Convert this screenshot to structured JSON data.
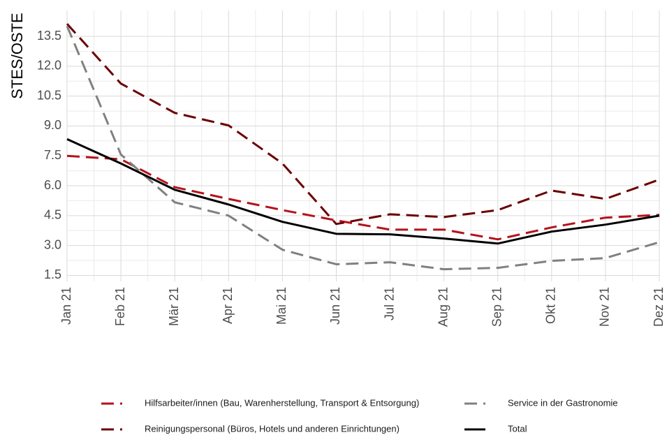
{
  "chart_data": {
    "type": "line",
    "y_label": "STES/OSTE",
    "categories": [
      "Jan 21",
      "Feb 21",
      "Mär 21",
      "Apr 21",
      "Mai 21",
      "Jun 21",
      "Jul 21",
      "Aug 21",
      "Sep 21",
      "Okt 21",
      "Nov 21",
      "Dez 21"
    ],
    "series": [
      {
        "name": "Hilfsarbeiter/innen (Bau, Warenherstellung, Transport & Entsorgung)",
        "color": "#b5121b",
        "linestyle": "dashed",
        "values": [
          7.5,
          7.33,
          5.93,
          5.34,
          4.78,
          4.26,
          3.8,
          3.8,
          3.31,
          3.91,
          4.4,
          4.54
        ]
      },
      {
        "name": "Reinigungspersonal (Büros, Hotels und anderen Einrichtungen)",
        "color": "#6b0000",
        "linestyle": "dashed",
        "values": [
          14.13,
          11.13,
          9.66,
          9.03,
          7.12,
          4.08,
          4.57,
          4.43,
          4.78,
          5.76,
          5.34,
          6.31
        ]
      },
      {
        "name": "Service in der Gastronomie",
        "color": "#808080",
        "linestyle": "dashed",
        "values": [
          14.02,
          7.57,
          5.17,
          4.5,
          2.79,
          2.06,
          2.16,
          1.81,
          1.88,
          2.23,
          2.37,
          3.17
        ]
      },
      {
        "name": "Total",
        "color": "#000000",
        "linestyle": "solid",
        "values": [
          8.34,
          7.12,
          5.8,
          5.06,
          4.19,
          3.59,
          3.56,
          3.35,
          3.1,
          3.7,
          4.05,
          4.5
        ]
      }
    ],
    "ylim": [
      1.2,
      14.8
    ],
    "yticks": [
      1.5,
      {
        "value": 3,
        "label": "3.0"
      },
      4.5,
      {
        "value": 6,
        "label": "6.0"
      },
      7.5,
      {
        "value": 9,
        "label": "9.0"
      },
      10.5,
      {
        "value": 12,
        "label": "12.0"
      },
      13.5
    ],
    "grid": true,
    "legend": "bottom"
  }
}
